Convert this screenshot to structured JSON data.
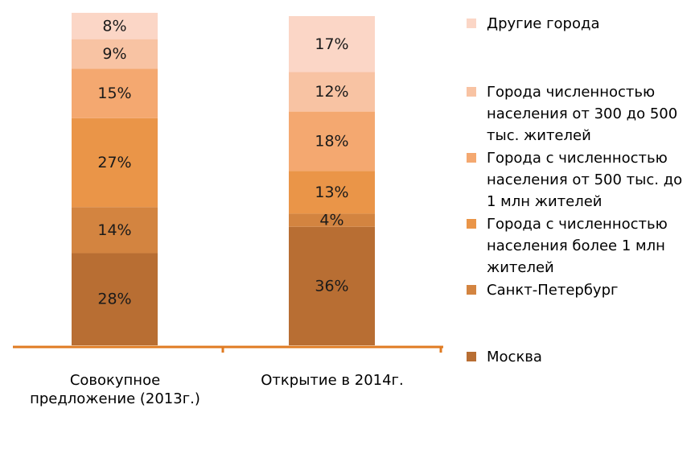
{
  "chart_data": {
    "type": "bar",
    "stacked": true,
    "percent": true,
    "categories": [
      [
        "Совокупное",
        "предложение (2013г.)"
      ],
      [
        "Открытие в 2014г."
      ]
    ],
    "series": [
      {
        "name": "Москва",
        "values": [
          28,
          36
        ],
        "color": "#B86E33"
      },
      {
        "name": "Санкт-Петербург",
        "values": [
          14,
          4
        ],
        "color": "#D38440"
      },
      {
        "name": [
          "Города с численностью",
          "населения более 1 млн",
          "жителей"
        ],
        "values": [
          27,
          13
        ],
        "color": "#EA9548"
      },
      {
        "name": [
          "Города с численностью",
          "населения от 500 тыс. до",
          "1 млн жителей"
        ],
        "values": [
          15,
          18
        ],
        "color": "#F4A870"
      },
      {
        "name": [
          "Города численностью",
          "населения от 300 до 500",
          "тыс. жителей"
        ],
        "values": [
          9,
          12
        ],
        "color": "#F8C3A3"
      },
      {
        "name": "Другие города",
        "values": [
          8,
          17
        ],
        "color": "#FBD6C6"
      }
    ],
    "data_labels": [
      [
        "28%",
        "14%",
        "27%",
        "15%",
        "9%",
        "8%"
      ],
      [
        "36%",
        "4%",
        "13%",
        "18%",
        "12%",
        "17%"
      ]
    ],
    "axis_color": "#E07B22",
    "ylim": [
      0,
      100
    ],
    "legend": "right"
  }
}
